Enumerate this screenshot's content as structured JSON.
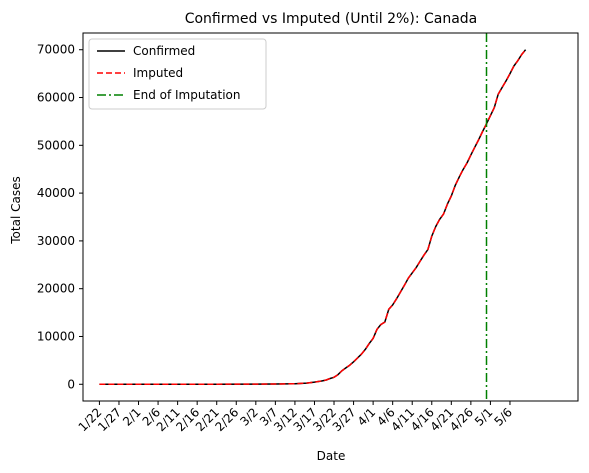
{
  "chart_data": {
    "type": "line",
    "title": "Confirmed vs Imputed (Until 2%): Canada",
    "xlabel": "Date",
    "ylabel": "Total Cases",
    "x_ticks": [
      "1/22",
      "1/27",
      "2/1",
      "2/6",
      "2/11",
      "2/16",
      "2/21",
      "2/26",
      "3/2",
      "3/7",
      "3/12",
      "3/17",
      "3/22",
      "3/27",
      "4/1",
      "4/6",
      "4/11",
      "4/16",
      "4/21",
      "4/26",
      "5/1",
      "5/6"
    ],
    "y_ticks": [
      0,
      10000,
      20000,
      30000,
      40000,
      50000,
      60000,
      70000
    ],
    "ylim": [
      -3500,
      73500
    ],
    "grid": false,
    "legend": "top-left",
    "vline_x": "4/30",
    "series": [
      {
        "name": "Confirmed",
        "color": "#000000",
        "style": "solid",
        "x": [
          "1/22",
          "2/21",
          "3/2",
          "3/7",
          "3/12",
          "3/15",
          "3/17",
          "3/19",
          "3/20",
          "3/21",
          "3/22",
          "3/23",
          "3/24",
          "3/25",
          "3/26",
          "3/27",
          "3/28",
          "3/29",
          "3/30",
          "3/31",
          "4/1",
          "4/2",
          "4/3",
          "4/4",
          "4/5",
          "4/6",
          "4/7",
          "4/8",
          "4/9",
          "4/10",
          "4/11",
          "4/12",
          "4/13",
          "4/14",
          "4/15",
          "4/16",
          "4/17",
          "4/18",
          "4/19",
          "4/20",
          "4/21",
          "4/22",
          "4/23",
          "4/24",
          "4/25",
          "4/26",
          "4/27",
          "4/28",
          "4/29",
          "4/30",
          "5/1",
          "5/2",
          "5/3",
          "5/4",
          "5/5",
          "5/6",
          "5/7",
          "5/8",
          "5/9",
          "5/10"
        ],
        "values": [
          0,
          10,
          30,
          60,
          120,
          250,
          450,
          700,
          900,
          1200,
          1450,
          2000,
          2800,
          3400,
          4000,
          4700,
          5500,
          6300,
          7300,
          8500,
          9600,
          11500,
          12500,
          13000,
          15700,
          16600,
          17900,
          19300,
          20700,
          22200,
          23300,
          24400,
          25700,
          27000,
          28200,
          31000,
          33000,
          34500,
          35600,
          37700,
          39400,
          41600,
          43300,
          44900,
          46300,
          48000,
          49600,
          51200,
          52900,
          54500,
          56200,
          57900,
          60700,
          62100,
          63500,
          65000,
          66600,
          67700,
          69000,
          70000
        ]
      },
      {
        "name": "Imputed",
        "color": "#ff0000",
        "style": "dashed",
        "x": [
          "1/22",
          "2/21",
          "3/2",
          "3/7",
          "3/12",
          "3/15",
          "3/17",
          "3/19",
          "3/20",
          "3/21",
          "3/22",
          "3/23",
          "3/24",
          "3/25",
          "3/26",
          "3/27",
          "3/28",
          "3/29",
          "3/30",
          "3/31",
          "4/1",
          "4/2",
          "4/3",
          "4/4",
          "4/5",
          "4/6",
          "4/7",
          "4/8",
          "4/9",
          "4/10",
          "4/11",
          "4/12",
          "4/13",
          "4/14",
          "4/15",
          "4/16",
          "4/17",
          "4/18",
          "4/19",
          "4/20",
          "4/21",
          "4/22",
          "4/23",
          "4/24",
          "4/25",
          "4/26",
          "4/27",
          "4/28",
          "4/29",
          "4/30",
          "5/1",
          "5/2",
          "5/3",
          "5/4",
          "5/5",
          "5/6",
          "5/7",
          "5/8",
          "5/9",
          "5/10"
        ],
        "values": [
          0,
          10,
          30,
          60,
          120,
          250,
          450,
          700,
          900,
          1200,
          1450,
          2000,
          2800,
          3400,
          4000,
          4700,
          5500,
          6300,
          7300,
          8500,
          9600,
          11500,
          12500,
          13000,
          15700,
          16600,
          17900,
          19300,
          20700,
          22200,
          23300,
          24400,
          25700,
          27000,
          28200,
          31000,
          33000,
          34500,
          35600,
          37700,
          39400,
          41600,
          43300,
          44900,
          46300,
          48000,
          49600,
          51200,
          52900,
          54500,
          56200,
          57900,
          60700,
          62100,
          63500,
          65000,
          66600,
          67700,
          69000,
          70000
        ]
      },
      {
        "name": "End of Imputation",
        "color": "#008000",
        "style": "dashdot"
      }
    ]
  }
}
